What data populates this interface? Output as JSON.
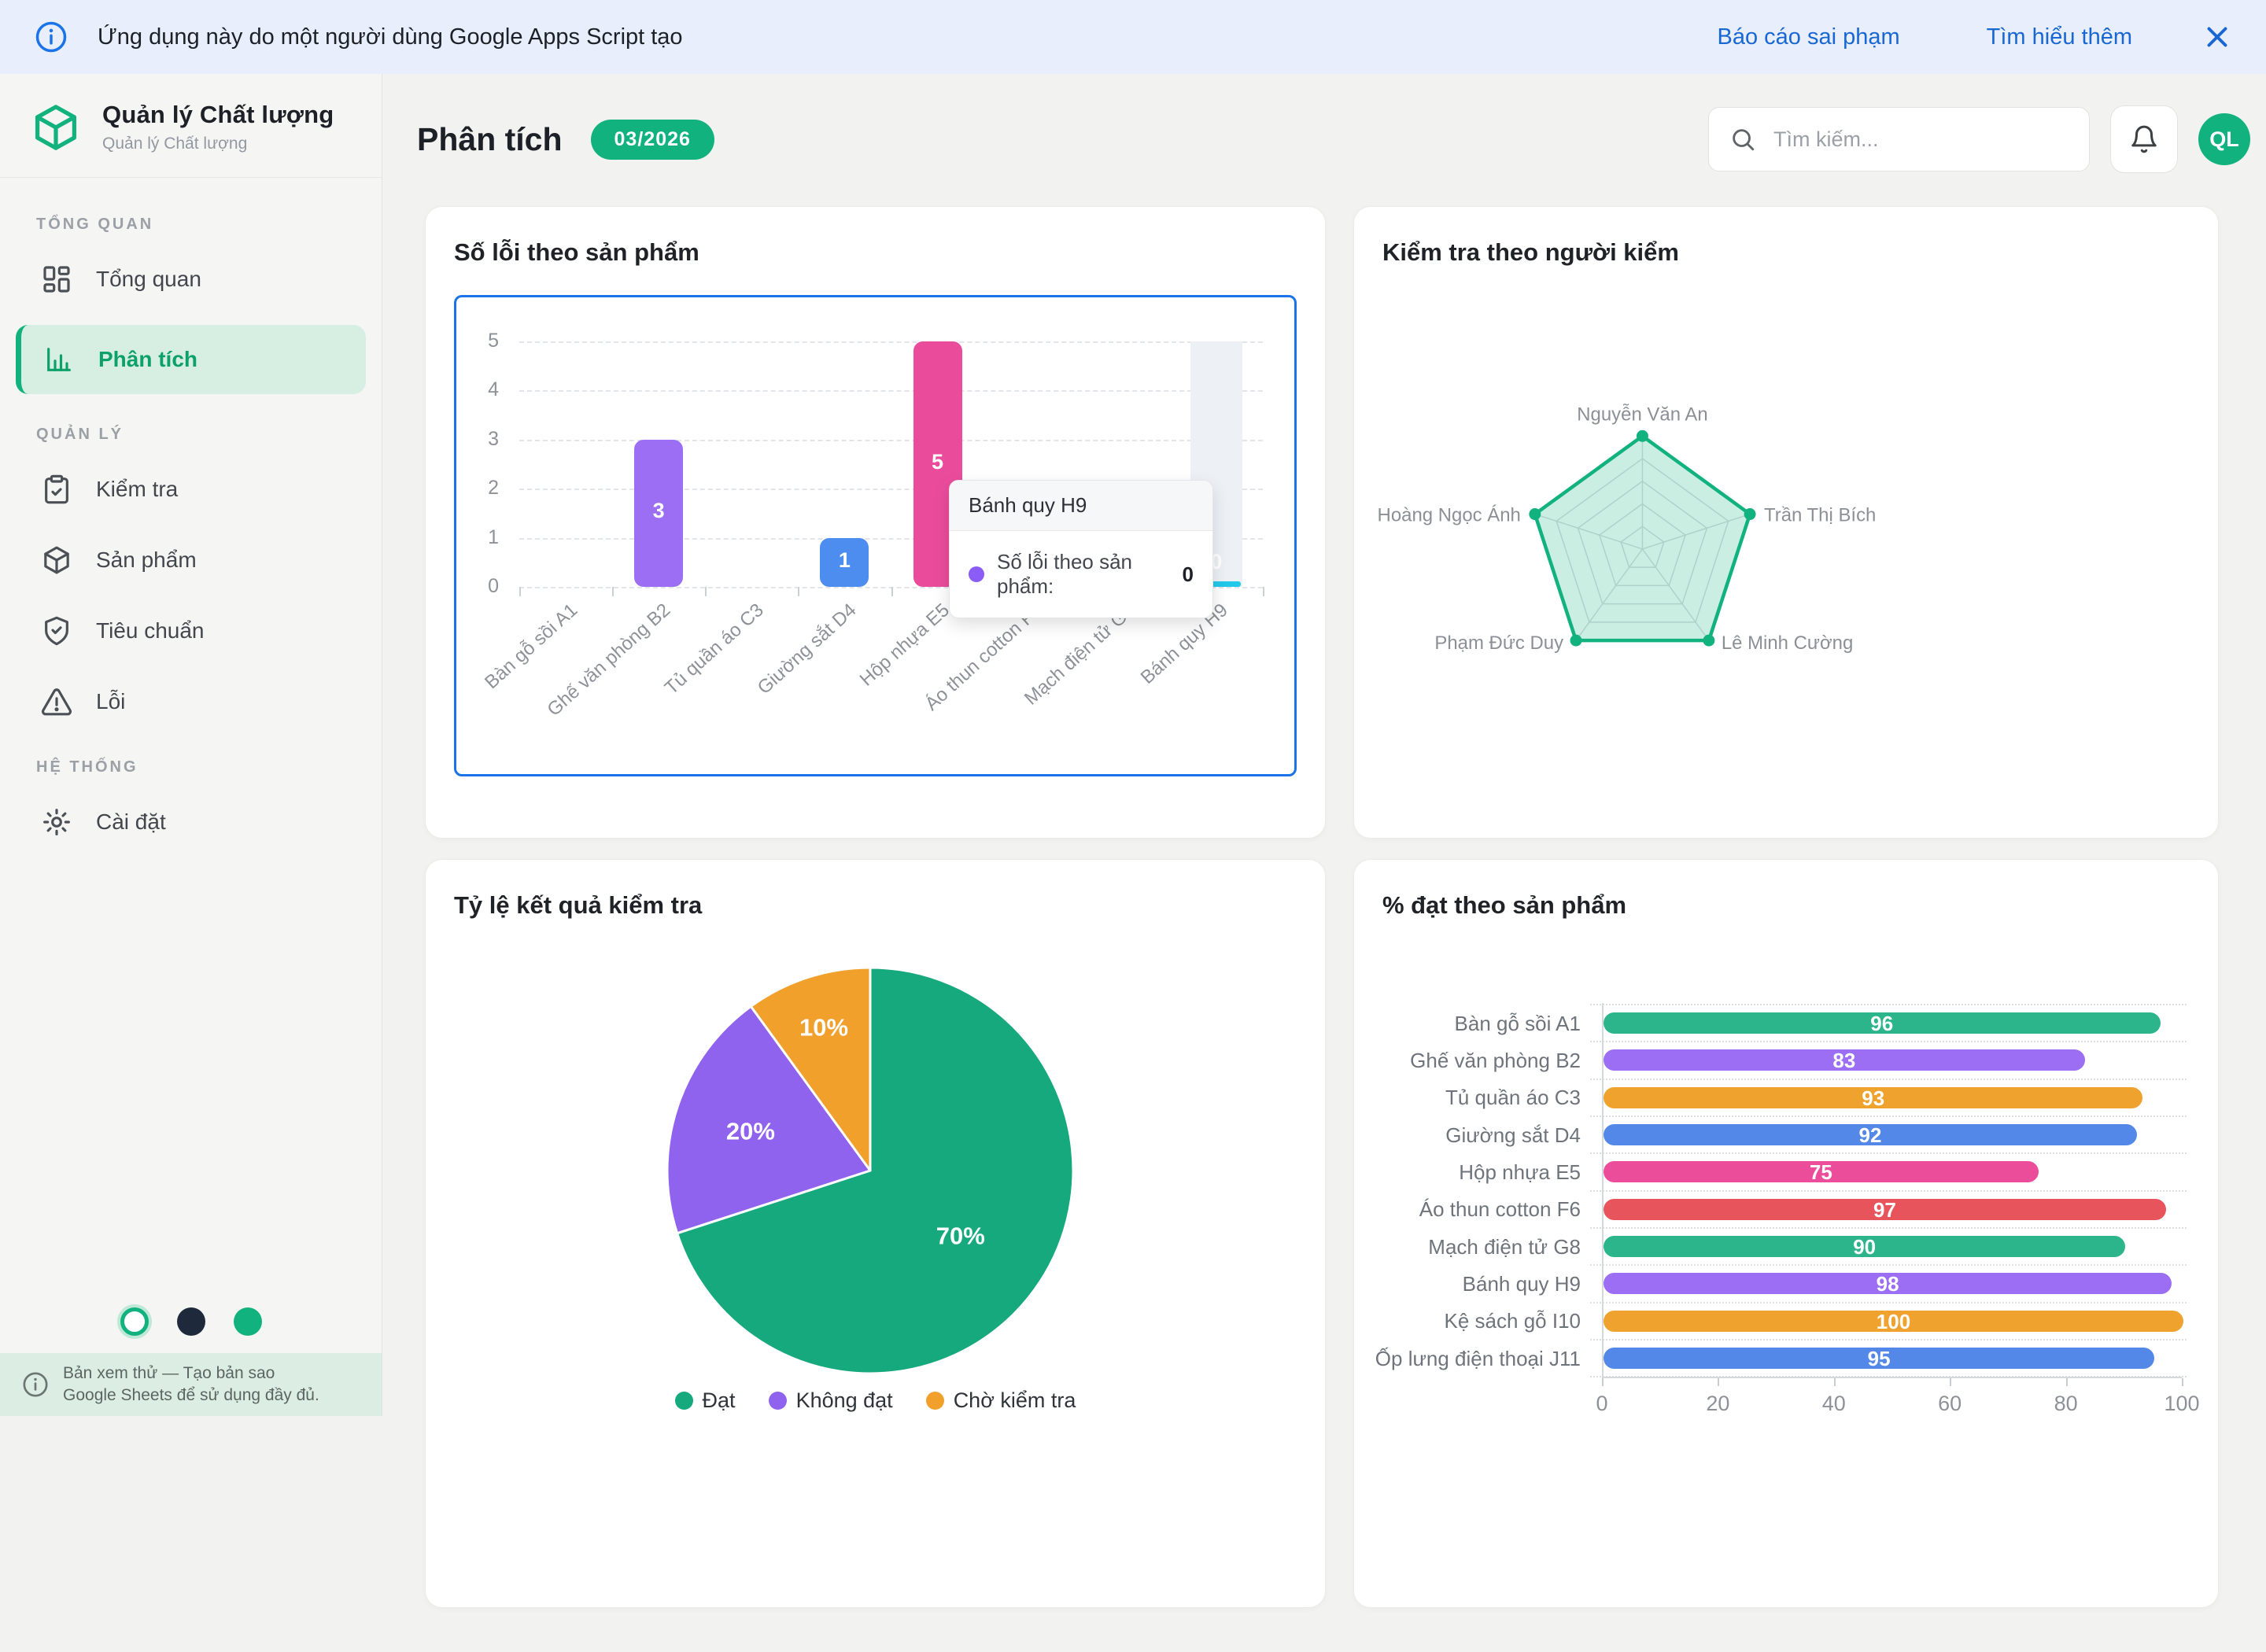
{
  "colors": {
    "brand_green": "#12b27e",
    "banner_link_blue": "#1967d2",
    "focus_border_blue": "#1a73e8",
    "theme_dots": [
      "#ffffff",
      "#1e2a3c",
      "#12b27e"
    ]
  },
  "banner": {
    "message": "Ứng dụng này do một người dùng Google Apps Script tạo",
    "report_link": "Báo cáo sai phạm",
    "learn_more_link": "Tìm hiểu thêm"
  },
  "sidebar": {
    "app_title": "Quản lý Chất lượng",
    "app_subtitle": "Quản lý Chất lượng",
    "sections": [
      {
        "label": "TỔNG QUAN",
        "items": [
          {
            "label": "Tổng quan"
          },
          {
            "label": "Phân tích",
            "active": true
          }
        ]
      },
      {
        "label": "QUẢN LÝ",
        "items": [
          {
            "label": "Kiểm tra"
          },
          {
            "label": "Sản phẩm"
          },
          {
            "label": "Tiêu chuẩn"
          },
          {
            "label": "Lỗi"
          }
        ]
      },
      {
        "label": "HỆ THỐNG",
        "items": [
          {
            "label": "Cài đặt"
          }
        ]
      }
    ],
    "footer_note": "Bản xem thử — Tạo bản sao Google Sheets để sử dụng đầy đủ."
  },
  "header": {
    "title": "Phân tích",
    "badge": "03/2026",
    "search_placeholder": "Tìm kiếm...",
    "avatar_initials": "QL"
  },
  "chart_data": [
    {
      "type": "bar",
      "title": "Số lỗi theo sản phẩm",
      "categories": [
        "Bàn gỗ sồi A1",
        "Ghế văn phòng B2",
        "Tủ quần áo C3",
        "Giường sắt D4",
        "Hộp nhựa E5",
        "Áo thun cotton F6",
        "Mạch điện tử G8",
        "Bánh quy H9"
      ],
      "values": [
        0,
        3,
        0,
        1,
        5,
        0,
        0,
        0
      ],
      "bar_colors": [
        "#2cb58a",
        "#9b6ef3",
        "#f0a22e",
        "#4d8df0",
        "#ea4c9b",
        "#e8545c",
        "#2cb58a",
        "#22c9e8"
      ],
      "ylim": [
        0,
        5
      ],
      "yticks": [
        0,
        1,
        2,
        3,
        4,
        5
      ],
      "grid": "dashed",
      "highlighted_category": "Bánh quy H9",
      "tooltip": {
        "title": "Bánh quy H9",
        "series_label": "Số lỗi theo sản phẩm:",
        "value": "0",
        "marker_color": "#8b5cf6"
      }
    },
    {
      "type": "radar",
      "title": "Kiểm tra theo người kiểm",
      "categories": [
        "Nguyễn Văn An",
        "Trần Thị Bích",
        "Lê Minh Cường",
        "Phạm Đức Duy",
        "Hoàng Ngọc Ánh"
      ],
      "values": [
        2,
        2,
        2,
        2,
        2
      ],
      "max": 2,
      "rings": 5,
      "stroke_color": "#12b27e",
      "fill_color": "rgba(18,178,126,0.22)"
    },
    {
      "type": "pie",
      "title": "Tỷ lệ kết quả kiểm tra",
      "labels": [
        "Đạt",
        "Không đạt",
        "Chờ kiểm tra"
      ],
      "values": [
        70,
        20,
        10
      ],
      "slice_labels": [
        "70%",
        "20%",
        "10%"
      ],
      "colors": [
        "#16a97d",
        "#8f63ee",
        "#f2a02c"
      ],
      "legend_position": "bottom"
    },
    {
      "type": "bar-horizontal",
      "title": "% đạt theo sản phẩm",
      "categories": [
        "Bàn gỗ sồi A1",
        "Ghế văn phòng B2",
        "Tủ quần áo C3",
        "Giường sắt D4",
        "Hộp nhựa E5",
        "Áo thun cotton F6",
        "Mạch điện tử G8",
        "Bánh quy H9",
        "Kệ sách gỗ I10",
        "Ốp lưng điện thoại J11"
      ],
      "values": [
        96,
        83,
        93,
        92,
        75,
        97,
        90,
        98,
        100,
        95
      ],
      "bar_colors": [
        "#2cb58a",
        "#9b6ef3",
        "#f0a22e",
        "#5388e8",
        "#ec4d9b",
        "#e8545c",
        "#2cb58a",
        "#9b6ef3",
        "#f0a22e",
        "#5388e8"
      ],
      "xlim": [
        0,
        100
      ],
      "xticks": [
        0,
        20,
        40,
        60,
        80,
        100
      ]
    }
  ]
}
